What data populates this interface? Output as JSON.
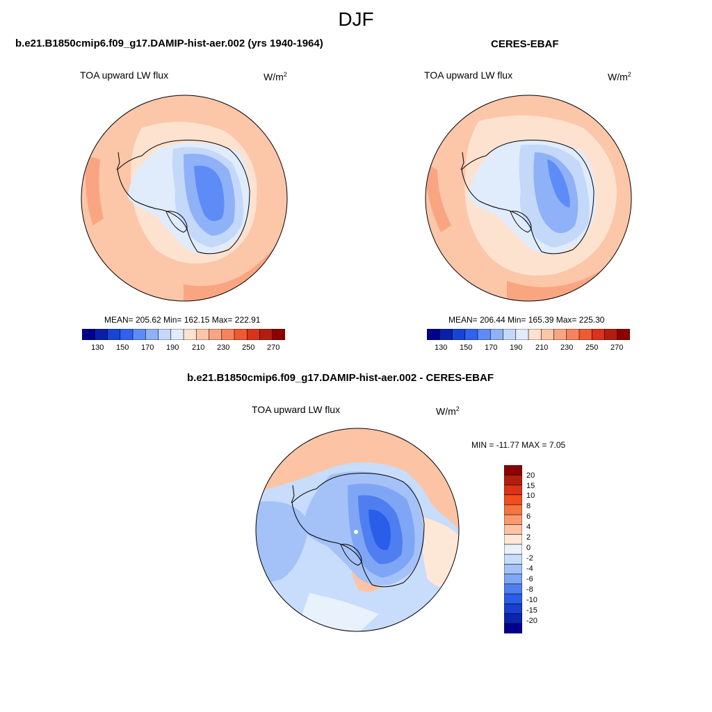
{
  "figure": {
    "title": "DJF",
    "unit_base": "W/m",
    "unit_exp": "2"
  },
  "panels": {
    "model": {
      "title": "b.e21.B1850cmip6.f09_g17.DAMIP-hist-aer.002 (yrs 1940-1964)",
      "variable": "TOA upward LW flux",
      "stats": "MEAN= 205.62  Min= 162.15  Max= 222.91"
    },
    "obs": {
      "title": "CERES-EBAF",
      "variable": "TOA upward LW flux",
      "stats": "MEAN= 206.44  Min= 165.39  Max= 225.30"
    },
    "diff": {
      "title": "b.e21.B1850cmip6.f09_g17.DAMIP-hist-aer.002 - CERES-EBAF",
      "variable": "TOA upward LW flux",
      "stats": "MIN = -11.77 MAX =   7.05"
    }
  },
  "colorbars": {
    "abs": {
      "colors": [
        "#00008b",
        "#0a1fa8",
        "#1844d6",
        "#2f62ee",
        "#5d8cf6",
        "#8fb1f8",
        "#c4d8fa",
        "#e0ecfc",
        "#fde2d0",
        "#fcc6a8",
        "#f9a582",
        "#f6835e",
        "#f05a32",
        "#dc321c",
        "#b31e10",
        "#8b0000"
      ],
      "labels": [
        "130",
        "150",
        "170",
        "190",
        "210",
        "230",
        "250",
        "270"
      ]
    },
    "diff": {
      "colors": [
        "#8b0000",
        "#b11e0e",
        "#dc3216",
        "#f04e1e",
        "#f6743e",
        "#f99a70",
        "#fcc4a4",
        "#fde8d8",
        "#e8f1fc",
        "#c8dcfb",
        "#a4c2f8",
        "#7ea6f5",
        "#4f7ef0",
        "#2a5ee8",
        "#173fd0",
        "#0b24ae",
        "#00008b"
      ],
      "labels": [
        "20",
        "15",
        "10",
        "8",
        "6",
        "4",
        "2",
        "0",
        "-2",
        "-4",
        "-6",
        "-8",
        "-10",
        "-15",
        "-20"
      ]
    }
  }
}
